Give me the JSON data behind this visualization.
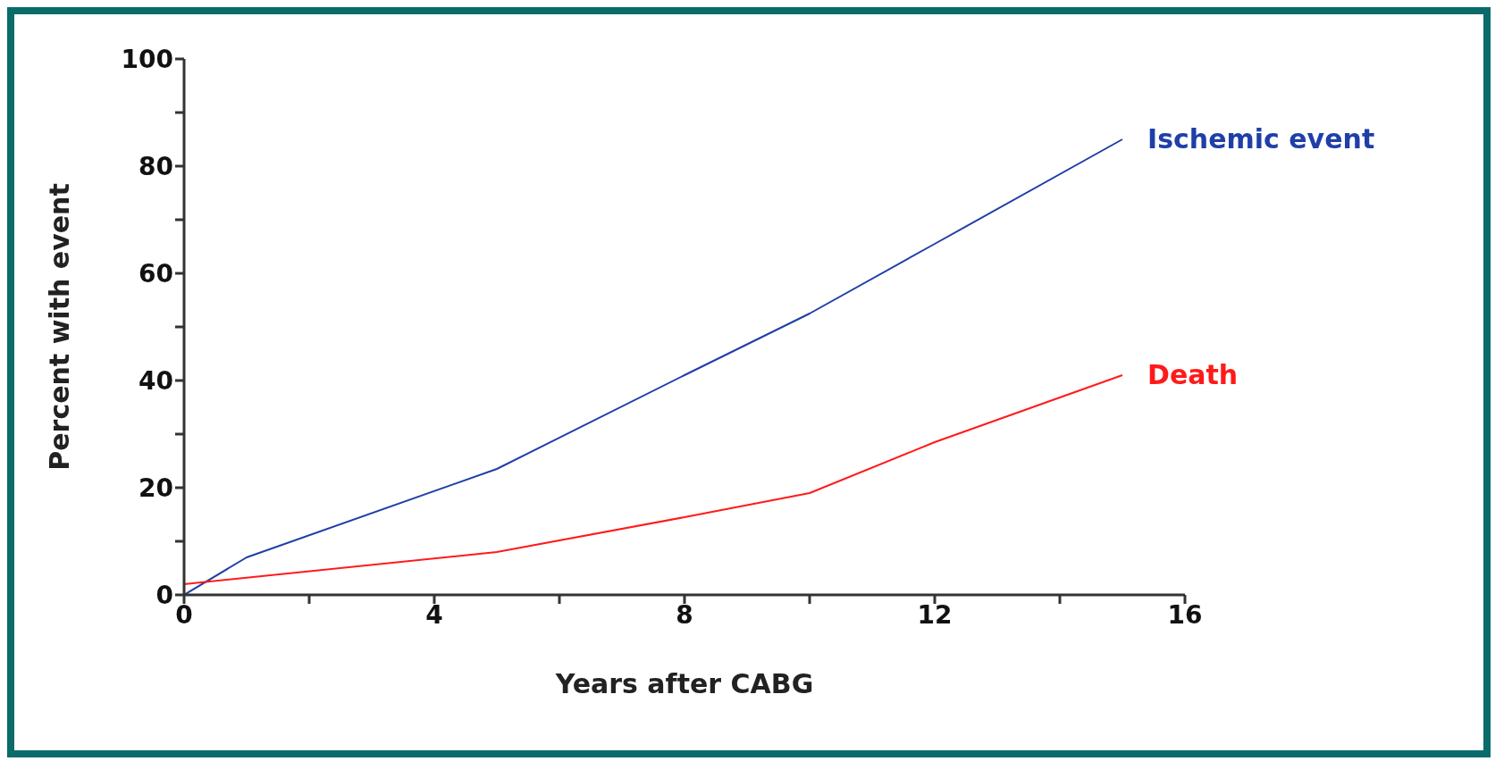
{
  "chart_data": {
    "type": "line",
    "xlabel": "Years after CABG",
    "ylabel": "Percent with event",
    "xlim": [
      0,
      16
    ],
    "ylim": [
      0,
      100
    ],
    "xticks": [
      0,
      {
        "value": 2,
        "label": null
      },
      4,
      {
        "value": 6,
        "label": null
      },
      8,
      {
        "value": 10,
        "label": null
      },
      12,
      {
        "value": 14,
        "label": null
      },
      16
    ],
    "yticks": [
      0,
      {
        "value": 10,
        "label": null
      },
      20,
      {
        "value": 30,
        "label": null
      },
      40,
      {
        "value": 50,
        "label": null
      },
      60,
      {
        "value": 70,
        "label": null
      },
      80,
      {
        "value": 90,
        "label": null
      },
      100
    ],
    "series": [
      {
        "name": "Ischemic event",
        "color": "#1f3fa8",
        "x": [
          0,
          1,
          5,
          8,
          10,
          12,
          15
        ],
        "values": [
          0,
          7,
          23.5,
          41,
          52.5,
          65.5,
          85
        ]
      },
      {
        "name": "Death",
        "color": "#ff1a1a",
        "x": [
          0,
          5,
          8,
          10,
          12,
          15
        ],
        "values": [
          2,
          8,
          14.5,
          19,
          28.5,
          41
        ]
      }
    ],
    "grid": false,
    "legend": false,
    "marker": "none",
    "line_style": "solid"
  }
}
